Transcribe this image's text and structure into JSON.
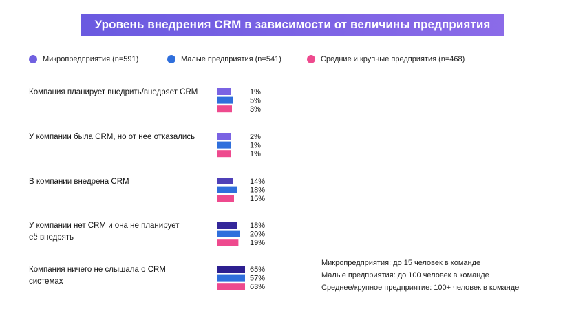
{
  "colors": {
    "banner_left": "#6a5ae0",
    "banner_right": "#8b6be8",
    "note_text": "#222222"
  },
  "chart_data": {
    "type": "bar",
    "orientation": "horizontal",
    "title": "Уровень внедрения CRM в зависимости от величины предприятия",
    "categories": [
      "Компания планирует внедрить/внедряет CRM",
      "У компании была CRM, но от нее отказались",
      "В компании внедрена CRM",
      "У компании нет CRM и она не планирует её внедрять",
      "Компания ничего не слышала о CRM системах"
    ],
    "category_lines": [
      [
        "Компания планирует внедрить/внедряет CRM"
      ],
      [
        "У компании была CRM, но от нее отказались"
      ],
      [
        "В компании внедрена CRM"
      ],
      [
        "У компании нет CRM и она не планирует",
        "её внедрять"
      ],
      [
        "Компания ничего не слышала о CRM",
        "системах"
      ]
    ],
    "series": [
      {
        "name": "Микропредприятия",
        "legend_label": "Микропредприятия  (n=591)",
        "legend_color": "#7060e0",
        "bar_colors": [
          "#7a63e3",
          "#7a63e3",
          "#4f40b8",
          "#34279a",
          "#2d1f90"
        ],
        "values": [
          1,
          2,
          14,
          18,
          65
        ],
        "labels": [
          "1%",
          "2%",
          "14%",
          "18%",
          "65%"
        ]
      },
      {
        "name": "Малые предприятия",
        "legend_label": "Малые предприятия  (n=541)",
        "legend_color": "#2f6fdc",
        "bar_colors": [
          "#2f6fdc",
          "#2f6fdc",
          "#2f6fdc",
          "#2f6fdc",
          "#2f6fdc"
        ],
        "values": [
          5,
          1,
          18,
          20,
          57
        ],
        "labels": [
          "5%",
          "1%",
          "18%",
          "20%",
          "57%"
        ]
      },
      {
        "name": "Средние и крупные предприятия",
        "legend_label": "Средние и крупные предприятия  (n=468)",
        "legend_color": "#ee4a8e",
        "bar_colors": [
          "#ee4a8e",
          "#ee4a8e",
          "#ee4a8e",
          "#ee4a8e",
          "#ee4a8e"
        ],
        "values": [
          3,
          1,
          15,
          19,
          63
        ],
        "labels": [
          "3%",
          "1%",
          "15%",
          "19%",
          "63%"
        ]
      }
    ],
    "xlabel": "",
    "ylabel": "",
    "value_unit": "%",
    "legend_position": "top",
    "grid": false
  },
  "notes": [
    "Микропредприятия: до 15 человек в команде",
    "Малые предприятия: до 100 человек в команде",
    "Среднее/крупное предприятие: 100+ человек в команде"
  ]
}
